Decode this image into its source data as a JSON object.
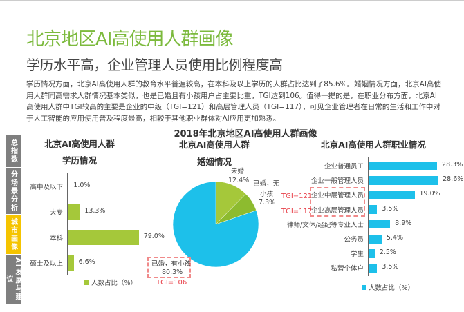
{
  "header": {
    "title": "北京地区AI高使用人群画像",
    "subtitle": "学历水平高，企业管理人员使用比例程度高"
  },
  "body": "学历情况方面，北京AI高使用人群的教育水平普遍较高，在本科及以上学历的人群占比达到了85.6%。婚姻情况方面，北京AI高使用人群同高需求人群情况基本类似，也是已婚且有小孩用户占主要比重，TGI达到106。值得一提的是，在职业分布方面，北京AI高使用人群中TGI较高的主要是企业的中级（TGI=121）和高层管理人员（TGI=117），可见企业管理者在日常的生活和工作中对于人工智能的应用使用普及程度最高，相较于其他职业群体对AI应用更加熟悉。",
  "sidebar": [
    {
      "label": "总指数",
      "active": false
    },
    {
      "label": "分场景分析",
      "active": false
    },
    {
      "label": "城市画像",
      "active": true
    },
    {
      "label": "AI发展与建议",
      "active": false
    }
  ],
  "colors": {
    "green": "#a5c83a",
    "green_dark": "#8dbb2f",
    "blue": "#1dc0ea",
    "sidebar_gray": "#7f7f7f",
    "sidebar_active": "#f5c400",
    "tgi": "#e8414a"
  },
  "overall_title": "2018年北京地区AI高使用人群画像",
  "chart_data": [
    {
      "type": "bar",
      "title": "北京AI高使用人群",
      "subtitle": "学历情况",
      "categories": [
        "高中及以下",
        "大专",
        "本科",
        "硕士及以上"
      ],
      "values": [
        1.0,
        13.3,
        79.0,
        6.6
      ],
      "value_labels": [
        "1.0%",
        "13.3%",
        "79.0%",
        "6.6%"
      ],
      "legend": "人数占比（%）",
      "orientation": "horizontal"
    },
    {
      "type": "pie",
      "title": "北京AI高使用人群",
      "subtitle": "婚姻情况",
      "slices": [
        {
          "name": "未婚",
          "value": 12.4,
          "label": "12.4%"
        },
        {
          "name": "已婚，无小孩",
          "name_lines": [
            "已婚，无",
            "小孩"
          ],
          "value": 7.3,
          "label": "7.3%"
        },
        {
          "name": "已婚，有小孩",
          "value": 80.3,
          "label": "80.3%",
          "annotation": "TGI=106"
        }
      ]
    },
    {
      "type": "bar",
      "title": "北京AI高使用人群职业情况",
      "categories": [
        "企业普通员工",
        "企业一般管理人员",
        "企业中层管理人员",
        "企业高层管理人员",
        "律师/文体/经纪等专业人士",
        "公务员",
        "学生",
        "私营个体户"
      ],
      "values": [
        28.3,
        28.6,
        19.0,
        3.5,
        8.9,
        5.4,
        2.5,
        3.5
      ],
      "value_labels": [
        "28.3%",
        "28.6%",
        "19.0%",
        "3.5%",
        "8.9%",
        "5.4%",
        "2.5%",
        "3.5%"
      ],
      "annotations": [
        {
          "category": "企业中层管理人员",
          "text": "TGI=121"
        },
        {
          "category": "企业高层管理人员",
          "text": "TGI=117"
        }
      ],
      "legend": "人数占比（%）",
      "orientation": "horizontal"
    }
  ]
}
